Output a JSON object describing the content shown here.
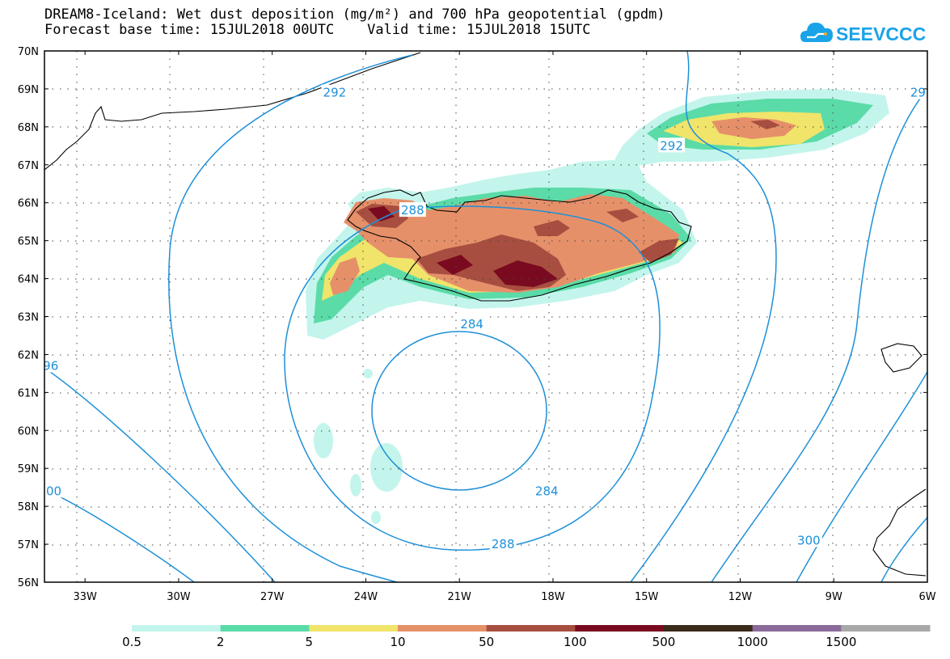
{
  "header": {
    "title_line1": "DREAM8-Iceland: Wet dust deposition (mg/m²) and 700 hPa geopotential (gpdm)",
    "title_line2": "Forecast base time: 15JUL2018 00UTC    Valid time: 15JUL2018 15UTC"
  },
  "logo": {
    "text": "SEEVCCC",
    "icon": "cloud-icon",
    "color": "#1aa3e8"
  },
  "map": {
    "lat_labels": [
      "70N",
      "69N",
      "68N",
      "67N",
      "66N",
      "65N",
      "64N",
      "63N",
      "62N",
      "61N",
      "60N",
      "59N",
      "58N",
      "57N",
      "56N"
    ],
    "lon_labels": [
      "33W",
      "30W",
      "27W",
      "24W",
      "21W",
      "18W",
      "15W",
      "12W",
      "9W",
      "6W"
    ],
    "lat_range": [
      56,
      70
    ],
    "lon_range": [
      -34.3,
      -6
    ],
    "gridlines": "dotted",
    "contour_color": "#1e90d8",
    "contour_labels": [
      {
        "value": "292",
        "lon": -25.0,
        "lat": 68.9
      },
      {
        "value": "292",
        "lon": -14.2,
        "lat": 67.5
      },
      {
        "value": "29",
        "lon": -6.3,
        "lat": 68.9
      },
      {
        "value": "288",
        "lon": -22.5,
        "lat": 65.8
      },
      {
        "value": "284",
        "lon": -20.6,
        "lat": 62.8
      },
      {
        "value": "284",
        "lon": -18.2,
        "lat": 58.4
      },
      {
        "value": "288",
        "lon": -19.6,
        "lat": 57.0
      },
      {
        "value": "96",
        "lon": -34.1,
        "lat": 61.7
      },
      {
        "value": "00",
        "lon": -34.0,
        "lat": 58.4
      },
      {
        "value": "300",
        "lon": -9.8,
        "lat": 57.1
      }
    ]
  },
  "legend": {
    "labels": [
      "0.5",
      "2",
      "5",
      "10",
      "50",
      "100",
      "500",
      "1000",
      "1500"
    ],
    "colors": [
      "#c3f5ec",
      "#5adba8",
      "#f0e46a",
      "#e6906a",
      "#a84e40",
      "#7a0a20",
      "#3a2a1a",
      "#8a6a98",
      "#a8a8a8"
    ]
  }
}
